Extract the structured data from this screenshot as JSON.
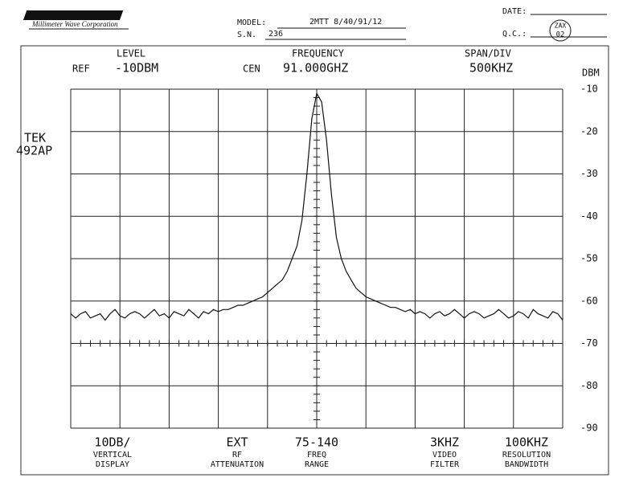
{
  "header": {
    "logo": "Millimeter Wave Corporation",
    "model_label": "MODEL:",
    "model": "2MTT 8/40/91/12",
    "sn_label": "S.N.",
    "sn": "236",
    "date_label": "DATE:",
    "qc_label": "Q.C.:",
    "qc_stamp": [
      "ZAX",
      "02"
    ]
  },
  "settings": {
    "level_label": "LEVEL",
    "ref_label": "REF",
    "level": "-10DBM",
    "frequency_label": "FREQUENCY",
    "cen_label": "CEN",
    "frequency": "91.000GHZ",
    "span_label": "SPAN/DIV",
    "span": "500KHZ"
  },
  "instrument": [
    "TEK",
    "492AP"
  ],
  "chart_data": {
    "type": "line",
    "y_label": "DBM",
    "ylim": [
      -90,
      -10
    ],
    "yticks": [
      -10,
      -20,
      -30,
      -40,
      -50,
      -60,
      -70,
      -80,
      -90
    ],
    "grid": true,
    "color": "#111111",
    "values": [
      -63,
      -64,
      -63,
      -62.5,
      -64,
      -63.5,
      -63,
      -64.5,
      -63,
      -62,
      -63.5,
      -64,
      -63,
      -62.5,
      -63,
      -64,
      -63,
      -62,
      -63.5,
      -63,
      -64,
      -62.5,
      -63,
      -63.5,
      -62,
      -63,
      -64,
      -62.5,
      -63,
      -62,
      -62.5,
      -62,
      -62,
      -61.5,
      -61,
      -61,
      -60.5,
      -60,
      -59.5,
      -59,
      -58,
      -57,
      -56,
      -55,
      -53,
      -50,
      -47,
      -41,
      -30,
      -17,
      -11,
      -13,
      -22,
      -35,
      -45,
      -50,
      -53,
      -55,
      -57,
      -58,
      -59,
      -59.5,
      -60,
      -60.5,
      -61,
      -61.5,
      -61.5,
      -62,
      -62.5,
      -62,
      -63,
      -62.5,
      -63,
      -64,
      -63,
      -62.5,
      -63.5,
      -63,
      -62,
      -63,
      -64,
      -63,
      -62.5,
      -63,
      -64,
      -63.5,
      -63,
      -62,
      -63,
      -64,
      -63.5,
      -62.5,
      -63,
      -64,
      -62,
      -63,
      -63.5,
      -64,
      -62.5,
      -63,
      -64.5
    ]
  },
  "footer": [
    {
      "value": "10DB/",
      "lines": [
        "VERTICAL",
        "DISPLAY"
      ]
    },
    {
      "value": "EXT",
      "lines": [
        "RF",
        "ATTENUATION"
      ]
    },
    {
      "value": "75-140",
      "lines": [
        "FREQ",
        "RANGE"
      ]
    },
    {
      "value": "3KHZ",
      "lines": [
        "VIDEO",
        "FILTER"
      ]
    },
    {
      "value": "100KHZ",
      "lines": [
        "RESOLUTION",
        "BANDWIDTH"
      ]
    }
  ]
}
